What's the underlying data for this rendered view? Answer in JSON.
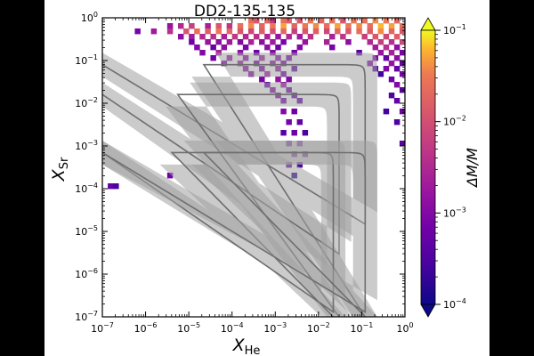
{
  "chart_data": {
    "type": "heatmap",
    "title": "DD2-135-135",
    "xlabel": "X",
    "xlabel_sub": "He",
    "ylabel": "X",
    "ylabel_sub": "Sr",
    "xscale": "log",
    "yscale": "log",
    "xlim": [
      1e-07,
      1
    ],
    "ylim": [
      1e-07,
      1
    ],
    "x_ticks": [
      {
        "exp": -7,
        "base": "10",
        "sup": "−7"
      },
      {
        "exp": -6,
        "base": "10",
        "sup": "−6"
      },
      {
        "exp": -5,
        "base": "10",
        "sup": "−5"
      },
      {
        "exp": -4,
        "base": "10",
        "sup": "−4"
      },
      {
        "exp": -3,
        "base": "10",
        "sup": "−3"
      },
      {
        "exp": -2,
        "base": "10",
        "sup": "−2"
      },
      {
        "exp": -1,
        "base": "10",
        "sup": "−1"
      },
      {
        "exp": 0,
        "base": "10",
        "sup": "0"
      }
    ],
    "y_ticks": [
      {
        "exp": -7,
        "base": "10",
        "sup": "−7"
      },
      {
        "exp": -6,
        "base": "10",
        "sup": "−6"
      },
      {
        "exp": -5,
        "base": "10",
        "sup": "−5"
      },
      {
        "exp": -4,
        "base": "10",
        "sup": "−4"
      },
      {
        "exp": -3,
        "base": "10",
        "sup": "−3"
      },
      {
        "exp": -2,
        "base": "10",
        "sup": "−2"
      },
      {
        "exp": -1,
        "base": "10",
        "sup": "−1"
      },
      {
        "exp": 0,
        "base": "10",
        "sup": "0"
      }
    ],
    "colorbar": {
      "label": "ΔM/M",
      "scale": "log",
      "range": [
        0.0001,
        0.1
      ],
      "ticks": [
        {
          "exp": -4,
          "base": "10",
          "sup": "−4"
        },
        {
          "exp": -3,
          "base": "10",
          "sup": "−3"
        },
        {
          "exp": -2,
          "base": "10",
          "sup": "−2"
        },
        {
          "exp": -1,
          "base": "10",
          "sup": "−1"
        }
      ],
      "colormap": "plasma",
      "extend": "both"
    },
    "bins_per_decade": 8,
    "cells": [
      [
        -3.625,
        -0.125,
        -1.6
      ],
      [
        -3.5,
        -0.125,
        -1.9
      ],
      [
        -3.25,
        -0.125,
        -1.7
      ],
      [
        -3.125,
        -0.125,
        -2.3
      ],
      [
        -2.875,
        -0.125,
        -1.6
      ],
      [
        -2.75,
        -0.125,
        -1.8
      ],
      [
        -2.5,
        -0.125,
        -1.9
      ],
      [
        -2.25,
        -0.125,
        -1.5
      ],
      [
        -2.0,
        -0.125,
        -1.7
      ],
      [
        -1.75,
        -0.125,
        -1.6
      ],
      [
        -1.5,
        -0.125,
        -1.9
      ],
      [
        -1.25,
        -0.125,
        -1.5
      ],
      [
        -1.0,
        -0.125,
        -1.6
      ],
      [
        -0.75,
        -0.125,
        -1.4
      ],
      [
        -0.5,
        -0.125,
        -1.5
      ],
      [
        -0.25,
        -0.125,
        -1.7
      ],
      [
        -5.5,
        -0.25,
        -2.8
      ],
      [
        -5.25,
        -0.25,
        -2.5
      ],
      [
        -5.0,
        -0.25,
        -2.2
      ],
      [
        -4.625,
        -0.25,
        -2.6
      ],
      [
        -4.375,
        -0.25,
        -1.9
      ],
      [
        -4.125,
        -0.25,
        -2.3
      ],
      [
        -3.875,
        -0.25,
        -1.6
      ],
      [
        -3.625,
        -0.25,
        -1.4
      ],
      [
        -3.375,
        -0.25,
        -1.7
      ],
      [
        -3.125,
        -0.25,
        -1.5
      ],
      [
        -2.875,
        -0.25,
        -1.3
      ],
      [
        -2.625,
        -0.25,
        -1.7
      ],
      [
        -2.375,
        -0.25,
        -1.5
      ],
      [
        -2.125,
        -0.25,
        -1.4
      ],
      [
        -1.875,
        -0.25,
        -1.6
      ],
      [
        -1.625,
        -0.25,
        -1.3
      ],
      [
        -1.375,
        -0.25,
        -1.5
      ],
      [
        -1.125,
        -0.25,
        -1.4
      ],
      [
        -0.875,
        -0.25,
        -1.6
      ],
      [
        -0.625,
        -0.25,
        -1.2
      ],
      [
        -0.375,
        -0.25,
        -1.3
      ],
      [
        -0.125,
        -0.25,
        -1.6
      ],
      [
        -6.25,
        -0.375,
        -3.1
      ],
      [
        -5.875,
        -0.375,
        -2.7
      ],
      [
        -5.5,
        -0.375,
        -2.4
      ],
      [
        -5.125,
        -0.375,
        -1.9
      ],
      [
        -4.875,
        -0.375,
        -1.6
      ],
      [
        -4.625,
        -0.375,
        -1.8
      ],
      [
        -4.375,
        -0.375,
        -1.5
      ],
      [
        -4.125,
        -0.375,
        -1.7
      ],
      [
        -3.875,
        -0.375,
        -1.9
      ],
      [
        -3.625,
        -0.375,
        -2.1
      ],
      [
        -3.375,
        -0.375,
        -1.8
      ],
      [
        -3.125,
        -0.375,
        -2.0
      ],
      [
        -2.875,
        -0.375,
        -1.7
      ],
      [
        -2.625,
        -0.375,
        -2.2
      ],
      [
        -2.375,
        -0.375,
        -1.9
      ],
      [
        -2.125,
        -0.375,
        -1.8
      ],
      [
        -1.875,
        -0.375,
        -2.1
      ],
      [
        -1.625,
        -0.375,
        -1.7
      ],
      [
        -1.375,
        -0.375,
        -1.9
      ],
      [
        -1.125,
        -0.375,
        -1.6
      ],
      [
        -0.875,
        -0.375,
        -1.8
      ],
      [
        -0.625,
        -0.375,
        -1.4
      ],
      [
        -0.375,
        -0.375,
        -1.7
      ],
      [
        -0.125,
        -0.375,
        -1.9
      ],
      [
        -5.25,
        -0.5,
        -2.9
      ],
      [
        -5.0,
        -0.5,
        -2.7
      ],
      [
        -4.75,
        -0.5,
        -2.5
      ],
      [
        -4.5,
        -0.5,
        -2.4
      ],
      [
        -4.25,
        -0.5,
        -2.6
      ],
      [
        -4.0,
        -0.5,
        -2.3
      ],
      [
        -3.75,
        -0.5,
        -2.5
      ],
      [
        -3.5,
        -0.5,
        -2.4
      ],
      [
        -3.25,
        -0.5,
        -2.6
      ],
      [
        -3.0,
        -0.5,
        -2.8
      ],
      [
        -2.75,
        -0.5,
        -2.5
      ],
      [
        -2.5,
        -0.5,
        -2.7
      ],
      [
        -2.25,
        -0.5,
        -2.4
      ],
      [
        -1.75,
        -0.5,
        -2.6
      ],
      [
        -1.5,
        -0.5,
        -2.3
      ],
      [
        -1.0,
        -0.5,
        -2.2
      ],
      [
        -0.75,
        -0.5,
        -1.9
      ],
      [
        -0.5,
        -0.5,
        -2.1
      ],
      [
        -0.25,
        -0.5,
        -1.8
      ],
      [
        -5.0,
        -0.625,
        -3.2
      ],
      [
        -4.625,
        -0.625,
        -2.8
      ],
      [
        -4.375,
        -0.625,
        -2.9
      ],
      [
        -4.125,
        -0.625,
        -2.7
      ],
      [
        -3.875,
        -0.625,
        -3.0
      ],
      [
        -3.625,
        -0.625,
        -2.6
      ],
      [
        -3.375,
        -0.625,
        -2.9
      ],
      [
        -3.125,
        -0.625,
        -2.7
      ],
      [
        -2.875,
        -0.625,
        -3.1
      ],
      [
        -2.375,
        -0.625,
        -2.8
      ],
      [
        -1.875,
        -0.625,
        -2.6
      ],
      [
        -1.375,
        -0.625,
        -2.9
      ],
      [
        -0.875,
        -0.625,
        -2.5
      ],
      [
        -0.625,
        -0.625,
        -2.2
      ],
      [
        -0.375,
        -0.625,
        -2.4
      ],
      [
        -0.125,
        -0.625,
        -2.1
      ],
      [
        -4.875,
        -0.75,
        -3.0
      ],
      [
        -4.5,
        -0.75,
        -3.3
      ],
      [
        -4.25,
        -0.75,
        -2.9
      ],
      [
        -3.75,
        -0.75,
        -3.1
      ],
      [
        -3.25,
        -0.75,
        -2.9
      ],
      [
        -3.0,
        -0.75,
        -3.2
      ],
      [
        -2.5,
        -0.75,
        -3.0
      ],
      [
        -1.75,
        -0.75,
        -3.1
      ],
      [
        -0.75,
        -0.75,
        -2.7
      ],
      [
        -0.5,
        -0.75,
        -2.4
      ],
      [
        -0.25,
        -0.75,
        -2.9
      ],
      [
        -4.75,
        -0.875,
        -3.0
      ],
      [
        -4.375,
        -0.875,
        -2.6
      ],
      [
        -3.875,
        -0.875,
        -2.9
      ],
      [
        -3.5,
        -0.875,
        -3.2
      ],
      [
        -3.125,
        -0.875,
        -3.0
      ],
      [
        -2.625,
        -0.875,
        -3.1
      ],
      [
        -1.125,
        -0.875,
        -3.4
      ],
      [
        -0.625,
        -0.875,
        -2.8
      ],
      [
        -0.375,
        -0.875,
        -2.6
      ],
      [
        -0.125,
        -0.875,
        -3.1
      ],
      [
        -4.5,
        -1.0,
        -3.2
      ],
      [
        -4.125,
        -1.0,
        -2.8
      ],
      [
        -3.75,
        -1.0,
        -3.0
      ],
      [
        -3.375,
        -1.0,
        -2.7
      ],
      [
        -3.0,
        -1.0,
        -2.9
      ],
      [
        -2.75,
        -1.0,
        -3.1
      ],
      [
        -0.75,
        -1.0,
        -3.0
      ],
      [
        -0.5,
        -1.0,
        -3.3
      ],
      [
        -0.25,
        -1.0,
        -2.9
      ],
      [
        -4.25,
        -1.125,
        -3.0
      ],
      [
        -3.875,
        -1.125,
        -2.7
      ],
      [
        -3.5,
        -1.125,
        -3.2
      ],
      [
        -3.125,
        -1.125,
        -2.9
      ],
      [
        -2.875,
        -1.125,
        -3.1
      ],
      [
        -0.875,
        -1.125,
        -3.0
      ],
      [
        -0.375,
        -1.125,
        -2.8
      ],
      [
        -0.125,
        -1.125,
        -3.2
      ],
      [
        -3.75,
        -1.25,
        -2.9
      ],
      [
        -3.375,
        -1.25,
        -3.1
      ],
      [
        -3.0,
        -1.25,
        -2.8
      ],
      [
        -2.625,
        -1.25,
        -3.3
      ],
      [
        -0.75,
        -1.25,
        -3.4
      ],
      [
        -0.5,
        -1.25,
        -3.0
      ],
      [
        -0.25,
        -1.25,
        -3.3
      ],
      [
        -3.625,
        -1.375,
        -3.0
      ],
      [
        -3.25,
        -1.375,
        -2.7
      ],
      [
        -2.875,
        -1.375,
        -3.2
      ],
      [
        -0.625,
        -1.375,
        -3.6
      ],
      [
        -0.125,
        -1.375,
        -3.1
      ],
      [
        -3.375,
        -1.5,
        -3.1
      ],
      [
        -3.0,
        -1.5,
        -2.8
      ],
      [
        -2.75,
        -1.5,
        -3.0
      ],
      [
        -0.375,
        -1.5,
        -3.2
      ],
      [
        -3.25,
        -1.625,
        -3.3
      ],
      [
        -2.875,
        -1.625,
        -2.9
      ],
      [
        -0.25,
        -1.625,
        -3.0
      ],
      [
        -3.125,
        -1.75,
        -3.0
      ],
      [
        -2.75,
        -1.75,
        -3.2
      ],
      [
        -0.125,
        -1.75,
        -3.4
      ],
      [
        -3.0,
        -1.875,
        -3.1
      ],
      [
        -2.625,
        -1.875,
        -3.3
      ],
      [
        -0.375,
        -1.875,
        -3.5
      ],
      [
        -2.875,
        -2.0,
        -3.2
      ],
      [
        -2.5,
        -2.0,
        -3.4
      ],
      [
        -0.25,
        -2.0,
        -3.3
      ],
      [
        -2.875,
        -2.25,
        -3.0
      ],
      [
        -2.625,
        -2.25,
        -3.2
      ],
      [
        -0.5,
        -2.25,
        -3.6
      ],
      [
        -0.125,
        -2.25,
        -3.2
      ],
      [
        -2.75,
        -2.5,
        -3.1
      ],
      [
        -2.5,
        -2.5,
        -3.3
      ],
      [
        -0.25,
        -2.5,
        -3.5
      ],
      [
        -2.875,
        -2.75,
        -3.4
      ],
      [
        -2.625,
        -2.75,
        -3.2
      ],
      [
        -2.375,
        -2.75,
        -3.5
      ],
      [
        -2.75,
        -3.0,
        -3.3
      ],
      [
        -2.5,
        -3.0,
        -3.1
      ],
      [
        -0.125,
        -3.0,
        -3.4
      ],
      [
        -2.625,
        -3.25,
        -3.2
      ],
      [
        -2.375,
        -3.25,
        -3.4
      ],
      [
        -2.75,
        -3.5,
        -3.3
      ],
      [
        -2.5,
        -3.5,
        -3.5
      ],
      [
        -2.625,
        -3.75,
        -3.8
      ],
      [
        -6.875,
        -4.0,
        -3.3
      ],
      [
        -6.75,
        -4.0,
        -3.5
      ],
      [
        -5.5,
        -3.75,
        -3.2
      ]
    ],
    "bands": [
      {
        "name": "",
        "a": 0.08,
        "b": 0.12,
        "logw": 0.28
      },
      {
        "name": "",
        "a": 0.016,
        "b": 0.03,
        "logw": 0.28
      },
      {
        "name": "",
        "a": 0.0007,
        "b": 0.022,
        "logw": 0.28
      },
      {
        "name": "",
        "a": 0.0007,
        "b": 0.12,
        "logw": 0.28
      }
    ]
  }
}
